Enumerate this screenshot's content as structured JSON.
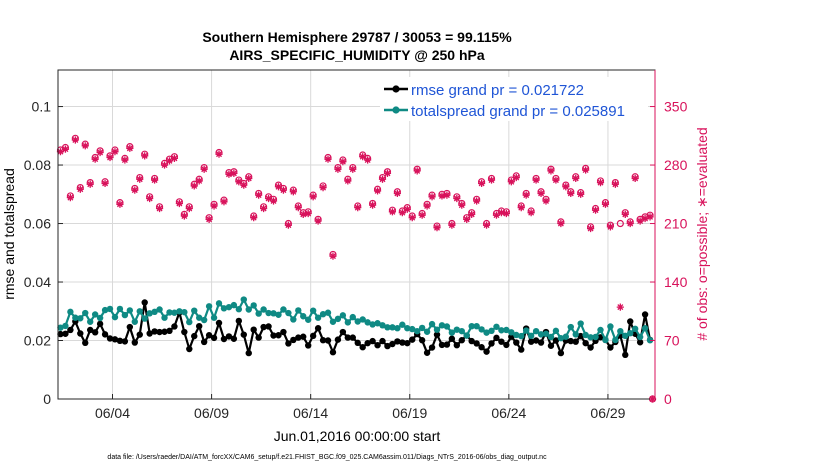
{
  "chart_data": {
    "type": "line",
    "title": "Southern Hemisphere 29787 / 30053 = 99.115%",
    "subtitle": "AIRS_SPECIFIC_HUMIDITY @ 250 hPa",
    "xlabel": "Jun.01,2016 00:00:00 start",
    "ylabel": "rmse and totalspread",
    "y2label": "# of obs: o=possible; ∗=evaluated",
    "footer": "data file: /Users/raeder/DAI/ATM_forcXX/CAM6_setup/f.e21.FHIST_BGC.f09_025.CAM6assim.011/Diags_NTrS_2016-06/obs_diag_output.nc",
    "xlim": [
      1,
      31.125
    ],
    "ylim": [
      0,
      0.1125
    ],
    "y2lim": [
      0,
      393.75
    ],
    "x_ticks": [
      3.75,
      8.75,
      13.75,
      18.75,
      23.75,
      28.75
    ],
    "x_tick_labels": [
      "06/04",
      "06/09",
      "06/14",
      "06/19",
      "06/24",
      "06/29"
    ],
    "y_ticks": [
      0,
      0.02,
      0.04,
      0.06,
      0.08,
      0.1
    ],
    "y_tick_labels": [
      "0",
      "0.02",
      "0.04",
      "0.06",
      "0.08",
      "0.1"
    ],
    "y2_ticks": [
      0,
      70,
      140,
      210,
      280,
      350
    ],
    "y2_tick_labels": [
      "0",
      "70",
      "140",
      "210",
      "280",
      "350"
    ],
    "grid": true,
    "legend_position": "top-right",
    "colors": {
      "rmse": "#000000",
      "spread": "#0f8a84",
      "obs": "#d8125b",
      "legend_text": "#1f55d6",
      "title": "#000000"
    },
    "series": [
      {
        "name": "rmse grand pr = 0.021722",
        "axis": "left",
        "x": [
          1.125,
          1.375,
          1.625,
          1.875,
          2.125,
          2.375,
          2.625,
          2.875,
          3.125,
          3.375,
          3.625,
          3.875,
          4.125,
          4.375,
          4.625,
          4.875,
          5.125,
          5.375,
          5.625,
          5.875,
          6.125,
          6.375,
          6.625,
          6.875,
          7.125,
          7.375,
          7.625,
          7.875,
          8.125,
          8.375,
          8.625,
          8.875,
          9.125,
          9.375,
          9.625,
          9.875,
          10.125,
          10.375,
          10.625,
          10.875,
          11.125,
          11.375,
          11.625,
          11.875,
          12.125,
          12.375,
          12.625,
          12.875,
          13.125,
          13.375,
          13.625,
          13.875,
          14.125,
          14.375,
          14.625,
          14.875,
          15.125,
          15.375,
          15.625,
          15.875,
          16.125,
          16.375,
          16.625,
          16.875,
          17.125,
          17.375,
          17.625,
          17.875,
          18.125,
          18.375,
          18.625,
          18.875,
          19.125,
          19.375,
          19.625,
          19.875,
          20.125,
          20.375,
          20.625,
          20.875,
          21.125,
          21.375,
          21.625,
          21.875,
          22.125,
          22.375,
          22.625,
          22.875,
          23.125,
          23.375,
          23.625,
          23.875,
          24.125,
          24.375,
          24.625,
          24.875,
          25.125,
          25.375,
          25.625,
          25.875,
          26.125,
          26.375,
          26.625,
          26.875,
          27.125,
          27.375,
          27.625,
          27.875,
          28.125,
          28.375,
          28.625,
          28.875,
          29.125,
          29.375,
          29.625,
          29.875,
          30.125,
          30.375,
          30.625,
          30.875
        ],
        "y": [
          0.0222,
          0.0223,
          0.0236,
          0.0265,
          0.0224,
          0.0192,
          0.0236,
          0.0228,
          0.0257,
          0.0221,
          0.0207,
          0.0204,
          0.0199,
          0.0197,
          0.0246,
          0.0193,
          0.022,
          0.033,
          0.0224,
          0.0231,
          0.0229,
          0.023,
          0.0233,
          0.0248,
          0.0296,
          0.0229,
          0.0171,
          0.0215,
          0.0249,
          0.0195,
          0.0218,
          0.0209,
          0.026,
          0.0205,
          0.0214,
          0.0206,
          0.0267,
          0.022,
          0.0157,
          0.0237,
          0.021,
          0.0246,
          0.0248,
          0.0217,
          0.0218,
          0.0229,
          0.019,
          0.0202,
          0.021,
          0.0213,
          0.0183,
          0.0216,
          0.0242,
          0.0201,
          0.02,
          0.016,
          0.0203,
          0.0229,
          0.021,
          0.021,
          0.0192,
          0.0177,
          0.0191,
          0.0198,
          0.0184,
          0.0198,
          0.0181,
          0.0188,
          0.0197,
          0.0193,
          0.0191,
          0.0203,
          0.0222,
          0.0201,
          0.0158,
          0.0176,
          0.022,
          0.0185,
          0.0186,
          0.0206,
          0.0184,
          0.0201,
          0.0217,
          0.0198,
          0.019,
          0.0177,
          0.0162,
          0.019,
          0.0209,
          0.0196,
          0.0185,
          0.0213,
          0.0193,
          0.0169,
          0.0241,
          0.0196,
          0.02,
          0.0193,
          0.0229,
          0.0182,
          0.02,
          0.0157,
          0.02,
          0.0198,
          0.0196,
          0.0215,
          0.0191,
          0.0176,
          0.0199,
          0.0211,
          0.0202,
          0.0176,
          0.0195,
          0.0217,
          0.0151,
          0.0265,
          0.0223,
          0.0194,
          0.0289,
          0.0202
        ]
      },
      {
        "name": "totalspread grand pr = 0.025891",
        "axis": "left",
        "x": [
          1.125,
          1.375,
          1.625,
          1.875,
          2.125,
          2.375,
          2.625,
          2.875,
          3.125,
          3.375,
          3.625,
          3.875,
          4.125,
          4.375,
          4.625,
          4.875,
          5.125,
          5.375,
          5.625,
          5.875,
          6.125,
          6.375,
          6.625,
          6.875,
          7.125,
          7.375,
          7.625,
          7.875,
          8.125,
          8.375,
          8.625,
          8.875,
          9.125,
          9.375,
          9.625,
          9.875,
          10.125,
          10.375,
          10.625,
          10.875,
          11.125,
          11.375,
          11.625,
          11.875,
          12.125,
          12.375,
          12.625,
          12.875,
          13.125,
          13.375,
          13.625,
          13.875,
          14.125,
          14.375,
          14.625,
          14.875,
          15.125,
          15.375,
          15.625,
          15.875,
          16.125,
          16.375,
          16.625,
          16.875,
          17.125,
          17.375,
          17.625,
          17.875,
          18.125,
          18.375,
          18.625,
          18.875,
          19.125,
          19.375,
          19.625,
          19.875,
          20.125,
          20.375,
          20.625,
          20.875,
          21.125,
          21.375,
          21.625,
          21.875,
          22.125,
          22.375,
          22.625,
          22.875,
          23.125,
          23.375,
          23.625,
          23.875,
          24.125,
          24.375,
          24.625,
          24.875,
          25.125,
          25.375,
          25.625,
          25.875,
          26.125,
          26.375,
          26.625,
          26.875,
          27.125,
          27.375,
          27.625,
          27.875,
          28.125,
          28.375,
          28.625,
          28.875,
          29.125,
          29.375,
          29.625,
          29.875,
          30.125,
          30.375,
          30.625,
          30.875
        ],
        "y": [
          0.0244,
          0.025,
          0.0298,
          0.0278,
          0.0276,
          0.0294,
          0.0264,
          0.0289,
          0.0277,
          0.0304,
          0.0308,
          0.028,
          0.0308,
          0.0287,
          0.0303,
          0.0264,
          0.03,
          0.0275,
          0.0293,
          0.0298,
          0.0306,
          0.0278,
          0.0296,
          0.0295,
          0.03,
          0.0297,
          0.0263,
          0.0302,
          0.0278,
          0.027,
          0.0317,
          0.0278,
          0.0327,
          0.031,
          0.0314,
          0.0321,
          0.0307,
          0.034,
          0.0306,
          0.032,
          0.0292,
          0.0306,
          0.0294,
          0.0293,
          0.0288,
          0.0306,
          0.0294,
          0.0272,
          0.0303,
          0.0283,
          0.0271,
          0.0302,
          0.0278,
          0.029,
          0.0295,
          0.0264,
          0.0274,
          0.0286,
          0.0262,
          0.028,
          0.0265,
          0.0272,
          0.0262,
          0.0255,
          0.0259,
          0.0252,
          0.0245,
          0.0245,
          0.0242,
          0.0254,
          0.0242,
          0.0239,
          0.0232,
          0.0243,
          0.023,
          0.0256,
          0.0237,
          0.0252,
          0.0248,
          0.0227,
          0.0237,
          0.0232,
          0.0217,
          0.0249,
          0.0249,
          0.0238,
          0.0227,
          0.0233,
          0.0247,
          0.0235,
          0.0236,
          0.0228,
          0.0219,
          0.0215,
          0.0234,
          0.0216,
          0.0232,
          0.0221,
          0.0223,
          0.0212,
          0.0233,
          0.0208,
          0.0213,
          0.0246,
          0.0221,
          0.0258,
          0.0219,
          0.0211,
          0.0212,
          0.0236,
          0.0202,
          0.0248,
          0.0202,
          0.0232,
          0.0216,
          0.0225,
          0.024,
          0.0212,
          0.0242,
          0.0201
        ]
      },
      {
        "name": "obs possible",
        "axis": "right",
        "marker": "o",
        "x": [
          1.125,
          1.375,
          1.625,
          1.875,
          2.125,
          2.375,
          2.625,
          2.875,
          3.125,
          3.375,
          3.625,
          3.875,
          4.125,
          4.375,
          4.625,
          4.875,
          5.125,
          5.375,
          5.625,
          5.875,
          6.125,
          6.375,
          6.625,
          6.875,
          7.125,
          7.375,
          7.625,
          7.875,
          8.125,
          8.375,
          8.625,
          8.875,
          9.125,
          9.375,
          9.625,
          9.875,
          10.125,
          10.375,
          10.625,
          10.875,
          11.125,
          11.375,
          11.625,
          11.875,
          12.125,
          12.375,
          12.625,
          12.875,
          13.125,
          13.375,
          13.625,
          13.875,
          14.125,
          14.375,
          14.625,
          14.875,
          15.125,
          15.375,
          15.625,
          15.875,
          16.125,
          16.375,
          16.625,
          16.875,
          17.125,
          17.375,
          17.625,
          17.875,
          18.125,
          18.375,
          18.625,
          18.875,
          19.125,
          19.375,
          19.625,
          19.875,
          20.125,
          20.375,
          20.625,
          20.875,
          21.125,
          21.375,
          21.625,
          21.875,
          22.125,
          22.375,
          22.625,
          22.875,
          23.125,
          23.375,
          23.625,
          23.875,
          24.125,
          24.375,
          24.625,
          24.875,
          25.125,
          25.375,
          25.625,
          25.875,
          26.125,
          26.375,
          26.625,
          26.875,
          27.125,
          27.375,
          27.625,
          27.875,
          28.125,
          28.375,
          28.625,
          28.875,
          29.125,
          29.375,
          29.625,
          29.875,
          30.125,
          30.375,
          30.625,
          30.875,
          31.0
        ],
        "y": [
          298,
          301,
          243,
          312,
          253,
          305,
          259,
          289,
          297,
          260,
          291,
          298,
          235,
          288,
          302,
          252,
          265,
          293,
          242,
          264,
          230,
          282,
          287,
          290,
          236,
          221,
          230,
          257,
          263,
          277,
          217,
          233,
          295,
          238,
          271,
          272,
          262,
          258,
          266,
          219,
          246,
          230,
          242,
          239,
          256,
          252,
          210,
          250,
          231,
          223,
          224,
          244,
          215,
          255,
          289,
          173,
          277,
          286,
          263,
          277,
          231,
          292,
          288,
          234,
          251,
          265,
          272,
          226,
          248,
          225,
          229,
          219,
          275,
          222,
          233,
          244,
          207,
          245,
          246,
          210,
          242,
          234,
          217,
          223,
          239,
          260,
          210,
          264,
          222,
          225,
          224,
          262,
          267,
          231,
          246,
          225,
          264,
          248,
          239,
          275,
          264,
          212,
          256,
          248,
          266,
          247,
          276,
          206,
          228,
          261,
          235,
          208,
          259,
          210,
          223,
          212,
          266,
          215,
          218,
          220,
          0
        ]
      },
      {
        "name": "obs evaluated",
        "axis": "right",
        "marker": "*",
        "x": [
          1.125,
          1.375,
          1.625,
          1.875,
          2.125,
          2.375,
          2.625,
          2.875,
          3.125,
          3.375,
          3.625,
          3.875,
          4.125,
          4.375,
          4.625,
          4.875,
          5.125,
          5.375,
          5.625,
          5.875,
          6.125,
          6.375,
          6.625,
          6.875,
          7.125,
          7.375,
          7.625,
          7.875,
          8.125,
          8.375,
          8.625,
          8.875,
          9.125,
          9.375,
          9.625,
          9.875,
          10.125,
          10.375,
          10.625,
          10.875,
          11.125,
          11.375,
          11.625,
          11.875,
          12.125,
          12.375,
          12.625,
          12.875,
          13.125,
          13.375,
          13.625,
          13.875,
          14.125,
          14.375,
          14.625,
          14.875,
          15.125,
          15.375,
          15.625,
          15.875,
          16.125,
          16.375,
          16.625,
          16.875,
          17.125,
          17.375,
          17.625,
          17.875,
          18.125,
          18.375,
          18.625,
          18.875,
          19.125,
          19.375,
          19.625,
          19.875,
          20.125,
          20.375,
          20.625,
          20.875,
          21.125,
          21.375,
          21.625,
          21.875,
          22.125,
          22.375,
          22.625,
          22.875,
          23.125,
          23.375,
          23.625,
          23.875,
          24.125,
          24.375,
          24.625,
          24.875,
          25.125,
          25.375,
          25.625,
          25.875,
          26.125,
          26.375,
          26.625,
          26.875,
          27.125,
          27.375,
          27.625,
          27.875,
          28.125,
          28.375,
          28.625,
          28.875,
          29.125,
          29.375,
          29.625,
          29.875,
          30.125,
          30.375,
          30.625,
          30.875,
          31.0
        ],
        "y": [
          296,
          299,
          241,
          310,
          251,
          303,
          257,
          287,
          295,
          258,
          289,
          296,
          233,
          286,
          300,
          250,
          263,
          291,
          240,
          262,
          228,
          280,
          285,
          288,
          234,
          219,
          228,
          255,
          261,
          275,
          215,
          231,
          293,
          236,
          269,
          270,
          260,
          256,
          264,
          217,
          244,
          228,
          240,
          237,
          254,
          250,
          208,
          248,
          229,
          221,
          222,
          242,
          213,
          253,
          287,
          171,
          275,
          284,
          261,
          275,
          229,
          290,
          286,
          232,
          249,
          263,
          270,
          224,
          246,
          223,
          227,
          217,
          273,
          220,
          231,
          242,
          205,
          243,
          244,
          208,
          240,
          232,
          215,
          221,
          237,
          258,
          208,
          262,
          220,
          223,
          222,
          260,
          265,
          229,
          244,
          223,
          262,
          246,
          237,
          273,
          262,
          210,
          254,
          246,
          264,
          245,
          274,
          204,
          226,
          259,
          233,
          206,
          257,
          110,
          221,
          210,
          264,
          213,
          216,
          218,
          0
        ]
      }
    ]
  }
}
